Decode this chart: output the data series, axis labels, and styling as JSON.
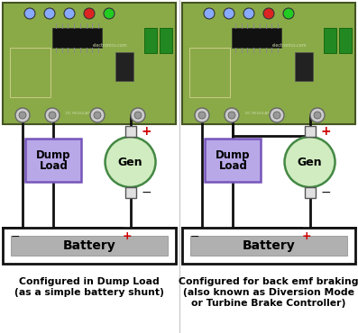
{
  "left_caption_line1": "Configured in Dump Load",
  "left_caption_line2": "(as a simple battery shunt)",
  "right_caption_line1": "Configured for back emf braking",
  "right_caption_line2": "(also known as Diversion Mode",
  "right_caption_line3": "or Turbine Brake Controller)",
  "dump_load_fill": "#b8a8e8",
  "dump_load_edge": "#7755bb",
  "gen_fill": "#d0ecc0",
  "gen_edge": "#448844",
  "battery_outer_fill": "#ffffff",
  "battery_outer_edge": "#111111",
  "battery_inner_fill": "#b0b0b0",
  "wire_color": "#111111",
  "plus_color": "#cc0000",
  "minus_color": "#111111",
  "bg_color": "#ffffff",
  "board_fill": "#8aaa48",
  "board_edge": "#445522",
  "ic_fill": "#111111",
  "connector_fill": "#cccccc",
  "connector_edge": "#666666",
  "terminal_fill": "#228822",
  "caption_color": "#000000",
  "led_blue": "#88aaff",
  "led_red": "#dd2222",
  "led_green": "#22cc22",
  "divider_color": "#cccccc"
}
